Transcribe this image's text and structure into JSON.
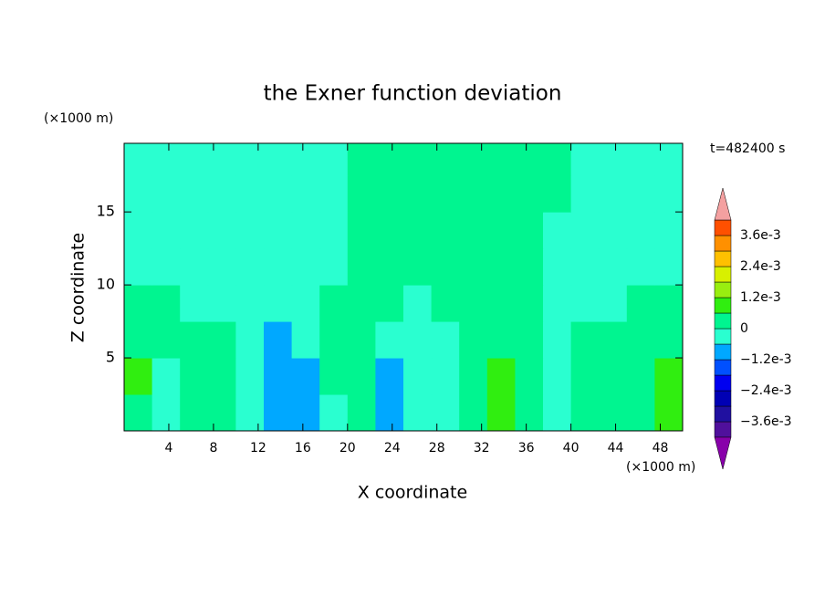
{
  "chart_data": {
    "type": "contour",
    "title": "the Exner function deviation",
    "xlabel": "X coordinate",
    "ylabel": "Z coordinate",
    "xunit": "(×1000 m)",
    "yunit": "(×1000 m)",
    "annotation": "t=482400 s",
    "xlim": [
      0,
      50
    ],
    "ylim": [
      0,
      19.7
    ],
    "xticks": [
      4,
      8,
      12,
      16,
      20,
      24,
      28,
      32,
      36,
      40,
      44,
      48
    ],
    "yticks": [
      5,
      10,
      15
    ],
    "x": [
      1.25,
      3.75,
      6.25,
      8.75,
      11.25,
      13.75,
      16.25,
      18.75,
      21.25,
      23.75,
      26.25,
      28.75,
      31.25,
      33.75,
      36.25,
      38.75,
      41.25,
      43.75,
      46.25,
      48.75
    ],
    "y": [
      1.25,
      3.75,
      6.25,
      8.75,
      11.25,
      13.75,
      16.25,
      18.75
    ],
    "values": [
      [
        0.0003,
        -0.0003,
        0.0003,
        0.0003,
        -0.0003,
        -0.0009,
        -0.0009,
        -0.0003,
        0.0003,
        -0.0009,
        -0.0003,
        -0.0003,
        0.0003,
        0.0009,
        0.0003,
        -0.0003,
        0.0003,
        0.0003,
        0.0003,
        0.0009
      ],
      [
        0.0009,
        -0.0003,
        0.0003,
        0.0003,
        -0.0003,
        -0.0009,
        -0.0009,
        0.0003,
        0.0003,
        -0.0009,
        -0.0003,
        -0.0003,
        0.0003,
        0.0009,
        0.0003,
        -0.0003,
        0.0003,
        0.0003,
        0.0003,
        0.0009
      ],
      [
        0.0003,
        0.0003,
        0.0003,
        0.0003,
        -0.0003,
        -0.0009,
        -0.0003,
        0.0003,
        0.0003,
        -0.0003,
        -0.0003,
        -0.0003,
        0.0003,
        0.0003,
        0.0003,
        -0.0003,
        0.0003,
        0.0003,
        0.0003,
        0.0003
      ],
      [
        0.0003,
        0.0003,
        -0.0003,
        -0.0003,
        -0.0003,
        -0.0003,
        -0.0003,
        0.0003,
        0.0003,
        0.0003,
        -0.0003,
        0.0003,
        0.0003,
        0.0003,
        0.0003,
        -0.0003,
        -0.0003,
        -0.0003,
        0.0003,
        0.0003
      ],
      [
        -0.0003,
        -0.0003,
        -0.0003,
        -0.0003,
        -0.0003,
        -0.0003,
        -0.0003,
        -0.0003,
        0.0003,
        0.0003,
        0.0003,
        0.0003,
        0.0003,
        0.0003,
        0.0003,
        -0.0003,
        -0.0003,
        -0.0003,
        -0.0003,
        -0.0003
      ],
      [
        -0.0003,
        -0.0003,
        -0.0003,
        -0.0003,
        -0.0003,
        -0.0003,
        -0.0003,
        -0.0003,
        0.0003,
        0.0003,
        0.0003,
        0.0003,
        0.0003,
        0.0003,
        0.0003,
        -0.0003,
        -0.0003,
        -0.0003,
        -0.0003,
        -0.0003
      ],
      [
        -0.0003,
        -0.0003,
        -0.0003,
        -0.0003,
        -0.0003,
        -0.0003,
        -0.0003,
        -0.0003,
        0.0003,
        0.0003,
        0.0003,
        0.0003,
        0.0003,
        0.0003,
        0.0003,
        0.0003,
        -0.0003,
        -0.0003,
        -0.0003,
        -0.0003
      ],
      [
        -0.0003,
        -0.0003,
        -0.0003,
        -0.0003,
        -0.0003,
        -0.0003,
        -0.0003,
        -0.0003,
        0.0003,
        0.0003,
        0.0003,
        0.0003,
        0.0003,
        0.0003,
        0.0003,
        0.0003,
        -0.0003,
        -0.0003,
        -0.0003,
        -0.0003
      ]
    ],
    "levels": [
      -0.0042,
      -0.0036,
      -0.003,
      -0.0024,
      -0.0018,
      -0.0012,
      -0.0006,
      0,
      0.0006,
      0.0012,
      0.0018,
      0.0024,
      0.003,
      0.0036,
      0.0042
    ],
    "colors": [
      "#50109c",
      "#2010a0",
      "#0000b4",
      "#0000f0",
      "#0050ff",
      "#00a8ff",
      "#2affd0",
      "#00f590",
      "#30ee10",
      "#99ee10",
      "#d8f000",
      "#ffc000",
      "#ff9000",
      "#ff5000",
      "#ff1a00"
    ],
    "extend_colors": [
      "#8800aa",
      "#f4a0a0"
    ],
    "colorbar_ticks": [
      {
        "value": 0.0036,
        "label": "3.6e-3"
      },
      {
        "value": 0.0024,
        "label": "2.4e-3"
      },
      {
        "value": 0.0012,
        "label": "1.2e-3"
      },
      0,
      {
        "value": -0.0012,
        "label": "−1.2e-3"
      },
      {
        "value": -0.0024,
        "label": "−2.4e-3"
      },
      {
        "value": -0.0036,
        "label": "−3.6e-3"
      }
    ]
  }
}
